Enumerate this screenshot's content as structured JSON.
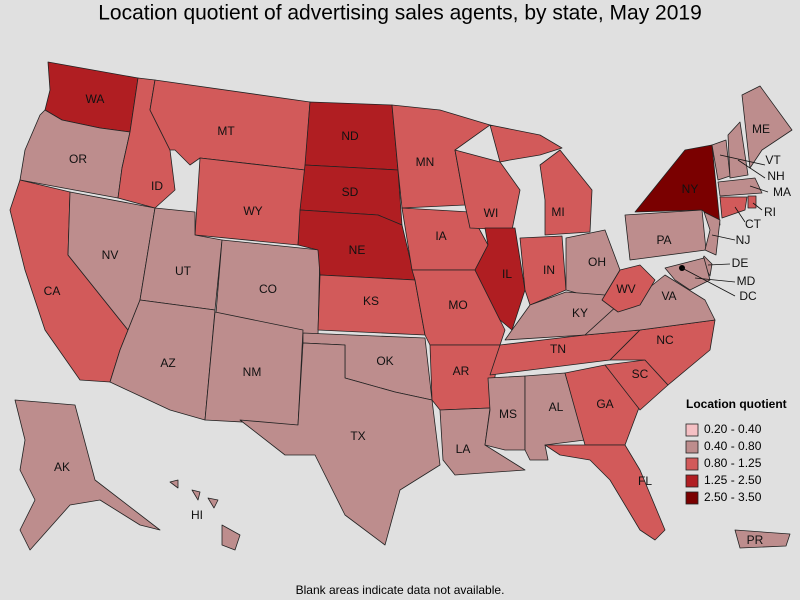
{
  "title": "Location quotient of advertising sales agents, by state, May 2019",
  "legend": {
    "title": "Location quotient",
    "items": [
      {
        "label": "0.20 - 0.40",
        "color": "#f5c0c4"
      },
      {
        "label": "0.40 - 0.80",
        "color": "#bd8d8d"
      },
      {
        "label": "0.80 - 1.25",
        "color": "#d25a5a"
      },
      {
        "label": "1.25 - 2.50",
        "color": "#b01e22"
      },
      {
        "label": "2.50 - 3.50",
        "color": "#7a0000"
      }
    ]
  },
  "states": [
    {
      "abbr": "WA",
      "category": "1.25 - 2.50"
    },
    {
      "abbr": "OR",
      "category": "0.40 - 0.80"
    },
    {
      "abbr": "CA",
      "category": "0.80 - 1.25"
    },
    {
      "abbr": "NV",
      "category": "0.40 - 0.80"
    },
    {
      "abbr": "ID",
      "category": "0.80 - 1.25"
    },
    {
      "abbr": "MT",
      "category": "0.80 - 1.25"
    },
    {
      "abbr": "WY",
      "category": "0.80 - 1.25"
    },
    {
      "abbr": "UT",
      "category": "0.40 - 0.80"
    },
    {
      "abbr": "CO",
      "category": "0.40 - 0.80"
    },
    {
      "abbr": "AZ",
      "category": "0.40 - 0.80"
    },
    {
      "abbr": "NM",
      "category": "0.40 - 0.80"
    },
    {
      "abbr": "ND",
      "category": "1.25 - 2.50"
    },
    {
      "abbr": "SD",
      "category": "1.25 - 2.50"
    },
    {
      "abbr": "NE",
      "category": "1.25 - 2.50"
    },
    {
      "abbr": "KS",
      "category": "0.80 - 1.25"
    },
    {
      "abbr": "OK",
      "category": "0.40 - 0.80"
    },
    {
      "abbr": "TX",
      "category": "0.40 - 0.80"
    },
    {
      "abbr": "MN",
      "category": "0.80 - 1.25"
    },
    {
      "abbr": "IA",
      "category": "0.80 - 1.25"
    },
    {
      "abbr": "MO",
      "category": "0.80 - 1.25"
    },
    {
      "abbr": "AR",
      "category": "0.80 - 1.25"
    },
    {
      "abbr": "LA",
      "category": "0.40 - 0.80"
    },
    {
      "abbr": "WI",
      "category": "0.80 - 1.25"
    },
    {
      "abbr": "IL",
      "category": "1.25 - 2.50"
    },
    {
      "abbr": "MI",
      "category": "0.80 - 1.25"
    },
    {
      "abbr": "IN",
      "category": "0.80 - 1.25"
    },
    {
      "abbr": "OH",
      "category": "0.40 - 0.80"
    },
    {
      "abbr": "KY",
      "category": "0.40 - 0.80"
    },
    {
      "abbr": "TN",
      "category": "0.80 - 1.25"
    },
    {
      "abbr": "MS",
      "category": "0.40 - 0.80"
    },
    {
      "abbr": "AL",
      "category": "0.40 - 0.80"
    },
    {
      "abbr": "GA",
      "category": "0.80 - 1.25"
    },
    {
      "abbr": "FL",
      "category": "0.80 - 1.25"
    },
    {
      "abbr": "SC",
      "category": "0.80 - 1.25"
    },
    {
      "abbr": "NC",
      "category": "0.80 - 1.25"
    },
    {
      "abbr": "VA",
      "category": "0.40 - 0.80"
    },
    {
      "abbr": "WV",
      "category": "0.80 - 1.25"
    },
    {
      "abbr": "PA",
      "category": "0.40 - 0.80"
    },
    {
      "abbr": "NY",
      "category": "2.50 - 3.50"
    },
    {
      "abbr": "VT",
      "category": "0.40 - 0.80"
    },
    {
      "abbr": "NH",
      "category": "0.40 - 0.80"
    },
    {
      "abbr": "ME",
      "category": "0.40 - 0.80"
    },
    {
      "abbr": "MA",
      "category": "0.40 - 0.80"
    },
    {
      "abbr": "RI",
      "category": "0.80 - 1.25"
    },
    {
      "abbr": "CT",
      "category": "0.80 - 1.25"
    },
    {
      "abbr": "NJ",
      "category": "0.40 - 0.80"
    },
    {
      "abbr": "DE",
      "category": "0.40 - 0.80"
    },
    {
      "abbr": "MD",
      "category": "0.40 - 0.80"
    },
    {
      "abbr": "DC",
      "category": null
    },
    {
      "abbr": "AK",
      "category": "0.40 - 0.80"
    },
    {
      "abbr": "HI",
      "category": "0.40 - 0.80"
    },
    {
      "abbr": "PR",
      "category": "0.40 - 0.80"
    }
  ],
  "footnote": "Blank areas indicate data not available."
}
